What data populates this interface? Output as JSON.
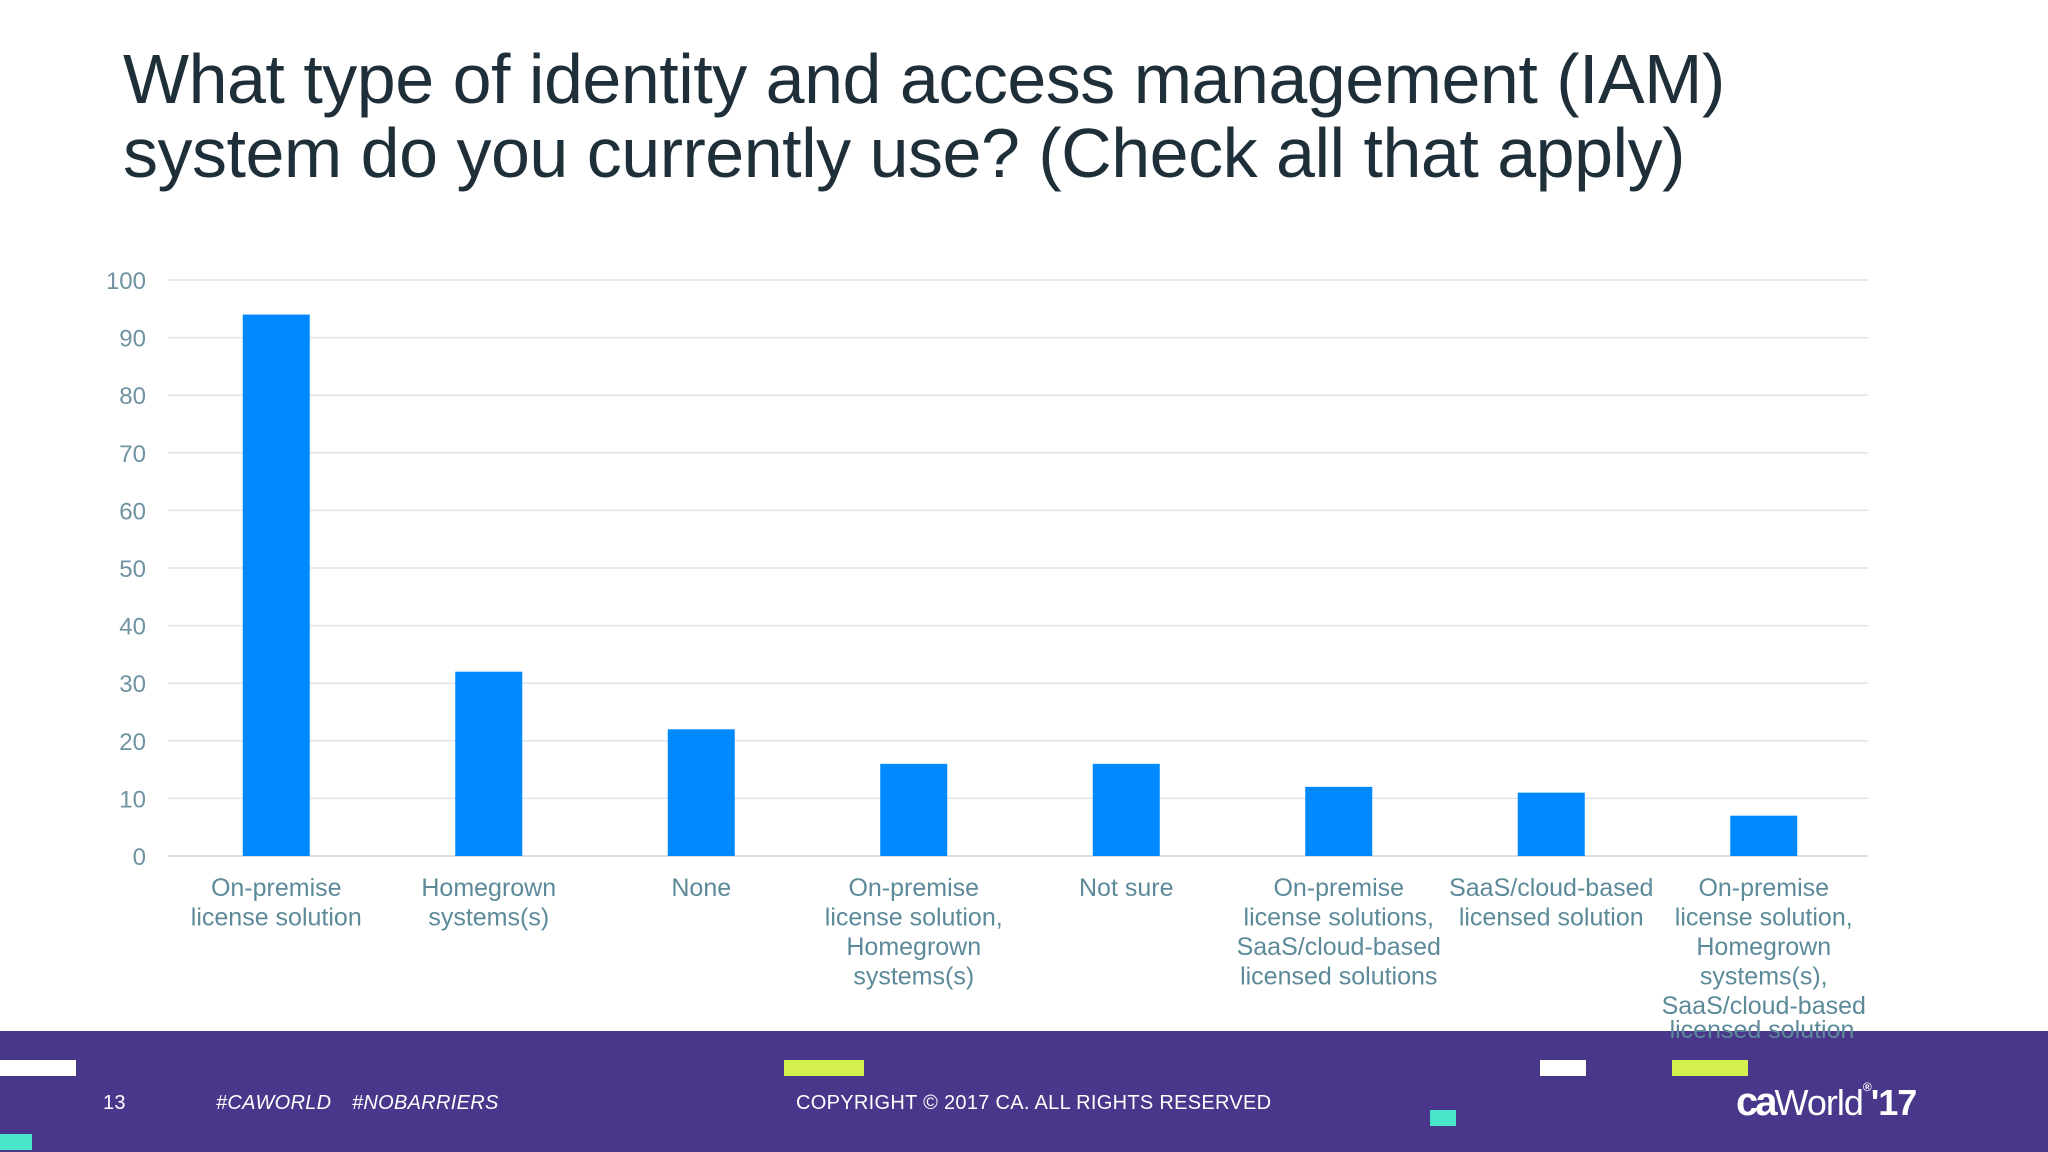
{
  "slide": {
    "title_lines": [
      "What type of identity and access management (IAM)",
      "system do you currently use? (Check all that apply)"
    ]
  },
  "chart_data": {
    "type": "bar",
    "title": "",
    "xlabel": "",
    "ylabel": "",
    "ylim": [
      0,
      100
    ],
    "yticks": [
      0,
      10,
      20,
      30,
      40,
      50,
      60,
      70,
      80,
      90,
      100
    ],
    "grid": true,
    "bar_color": "#0088ff",
    "categories": [
      [
        "On-premise",
        "license solution"
      ],
      [
        "Homegrown",
        "systems(s)"
      ],
      [
        "None"
      ],
      [
        "On-premise",
        "license solution,",
        "Homegrown",
        "systems(s)"
      ],
      [
        "Not sure"
      ],
      [
        "On-premise",
        "license solutions,",
        "SaaS/cloud-based",
        "licensed solutions"
      ],
      [
        "SaaS/cloud-based",
        "licensed solution"
      ],
      [
        "On-premise",
        "license solution,",
        "Homegrown",
        "systems(s),",
        "SaaS/cloud-based"
      ]
    ],
    "values": [
      94,
      32,
      22,
      16,
      16,
      12,
      11,
      7
    ]
  },
  "overflow_text": "licensed solution",
  "footer": {
    "page_number": "13",
    "hashtag1": "#CAWORLD",
    "hashtag2": "#NOBARRIERS",
    "copyright": "COPYRIGHT © 2017 CA. ALL RIGHTS RESERVED",
    "brand_ca": "ca",
    "brand_world": "World",
    "brand_year": "'17",
    "background_color": "#48378b"
  }
}
